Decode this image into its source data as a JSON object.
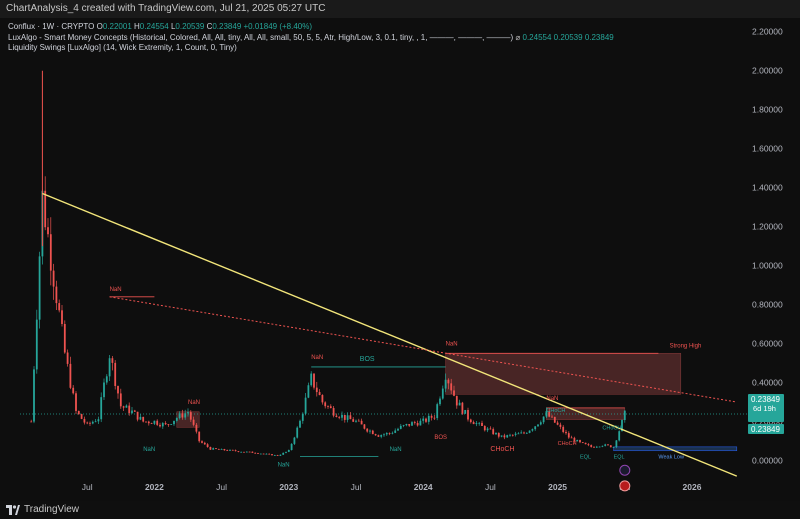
{
  "window": {
    "title": "ChartAnalysis_4 created with TradingView.com, Jul 21, 2025 05:27 UTC",
    "brand": "TradingView"
  },
  "legend": {
    "symbol": "Conflux · 1W · CRYPTO",
    "o_label": "O",
    "o_value": "0.22001",
    "h_label": "H",
    "h_value": "0.24554",
    "l_label": "L",
    "l_value": "0.20539",
    "c_label": "C",
    "c_value": "0.23849",
    "change": "+0.01849 (+8.40%)",
    "indicator1": "LuxAlgo - Smart Money Concepts (Historical, Colored, All, All, tiny, All, All, small, 50, 5, 5, Atr, High/Low, 3, 0.1, tiny, , 1, ———, ———, ———)",
    "indicator1_values": [
      "0.24554",
      "0.20539",
      "0.23849"
    ],
    "indicator2": "Liquidity Swings [LuxAlgo] (14, Wick Extremity, 1, Count, 0, Tiny)"
  },
  "price_tag": {
    "value": "0.23849",
    "countdown": "6d 19h",
    "value2": "0.23849"
  },
  "annotations": {
    "bos": "BOS",
    "bos_small": "BOS",
    "choch": "CHoCH",
    "choch_small": "CHoCH",
    "nan": "NaN",
    "strong_high": "Strong High",
    "weak_low": "Weak Low",
    "eql": "EQL"
  },
  "colors": {
    "up": "#26a69a",
    "down": "#ef5350",
    "trendline": "#f2e57a",
    "supply_zone": "#5c2d2d",
    "price_tag": "#26a69a",
    "text": "#d1d4dc"
  },
  "chart_data": {
    "type": "candlestick",
    "title": "",
    "xlabel": "",
    "ylabel": "",
    "ylim": [
      -0.1,
      2.25
    ],
    "y_ticks": [
      "2.20000",
      "2.00000",
      "1.80000",
      "1.60000",
      "1.40000",
      "1.20000",
      "1.00000",
      "0.80000",
      "0.60000",
      "0.40000",
      "0.20000",
      "0.00000"
    ],
    "y_tick_values": [
      2.2,
      2.0,
      1.8,
      1.6,
      1.4,
      1.2,
      1.0,
      0.8,
      0.6,
      0.4,
      0.2,
      0.0
    ],
    "x_ticks": [
      "Jul",
      "2022",
      "Jul",
      "2023",
      "Jul",
      "2024",
      "Jul",
      "2025",
      "Jul",
      "2026"
    ],
    "x_tick_dates": [
      "2021-07",
      "2022-01",
      "2022-07",
      "2023-01",
      "2023-07",
      "2024-01",
      "2024-07",
      "2025-01",
      "2025-07",
      "2026-01"
    ],
    "xlim": [
      "2021-01",
      "2026-06"
    ],
    "last_close": 0.23849,
    "price_path": [
      [
        "2021-02",
        0.2
      ],
      [
        "2021-03",
        1.35
      ],
      [
        "2021-04",
        0.95
      ],
      [
        "2021-05",
        0.55
      ],
      [
        "2021-06",
        0.25
      ],
      [
        "2021-07",
        0.18
      ],
      [
        "2021-08",
        0.22
      ],
      [
        "2021-09",
        0.55
      ],
      [
        "2021-10",
        0.28
      ],
      [
        "2021-11",
        0.25
      ],
      [
        "2021-12",
        0.2
      ],
      [
        "2022-01",
        0.2
      ],
      [
        "2022-02",
        0.18
      ],
      [
        "2022-03",
        0.22
      ],
      [
        "2022-04",
        0.25
      ],
      [
        "2022-05",
        0.1
      ],
      [
        "2022-06",
        0.06
      ],
      [
        "2022-08",
        0.05
      ],
      [
        "2022-10",
        0.04
      ],
      [
        "2022-12",
        0.025
      ],
      [
        "2023-01",
        0.05
      ],
      [
        "2023-02",
        0.2
      ],
      [
        "2023-03",
        0.42
      ],
      [
        "2023-04",
        0.3
      ],
      [
        "2023-05",
        0.25
      ],
      [
        "2023-06",
        0.22
      ],
      [
        "2023-07",
        0.2
      ],
      [
        "2023-08",
        0.16
      ],
      [
        "2023-09",
        0.13
      ],
      [
        "2023-10",
        0.14
      ],
      [
        "2023-11",
        0.17
      ],
      [
        "2023-12",
        0.19
      ],
      [
        "2024-01",
        0.2
      ],
      [
        "2024-02",
        0.23
      ],
      [
        "2024-03",
        0.45
      ],
      [
        "2024-04",
        0.3
      ],
      [
        "2024-05",
        0.22
      ],
      [
        "2024-06",
        0.18
      ],
      [
        "2024-07",
        0.15
      ],
      [
        "2024-08",
        0.12
      ],
      [
        "2024-09",
        0.13
      ],
      [
        "2024-10",
        0.14
      ],
      [
        "2024-11",
        0.18
      ],
      [
        "2024-12",
        0.24
      ],
      [
        "2025-01",
        0.18
      ],
      [
        "2025-02",
        0.12
      ],
      [
        "2025-03",
        0.09
      ],
      [
        "2025-04",
        0.07
      ],
      [
        "2025-05",
        0.08
      ],
      [
        "2025-06",
        0.07
      ],
      [
        "2025-07",
        0.238
      ]
    ],
    "trendlines": [
      {
        "name": "yellow",
        "from": [
          "2021-03",
          1.37
        ],
        "to": [
          "2026-05",
          -0.08
        ]
      },
      {
        "name": "red-dotted",
        "from": [
          "2021-09",
          0.84
        ],
        "to": [
          "2026-05",
          0.3
        ]
      }
    ],
    "zones": [
      {
        "kind": "supply",
        "from": "2024-03",
        "to": "2025-12",
        "low": 0.34,
        "high": 0.55
      },
      {
        "kind": "supply",
        "from": "2024-12",
        "to": "2025-07",
        "low": 0.21,
        "high": 0.27
      },
      {
        "kind": "demand",
        "from": "2025-06",
        "to": "2026-05",
        "low": 0.05,
        "high": 0.07
      },
      {
        "kind": "supply",
        "from": "2022-03",
        "to": "2022-05",
        "low": 0.17,
        "high": 0.25
      }
    ]
  }
}
